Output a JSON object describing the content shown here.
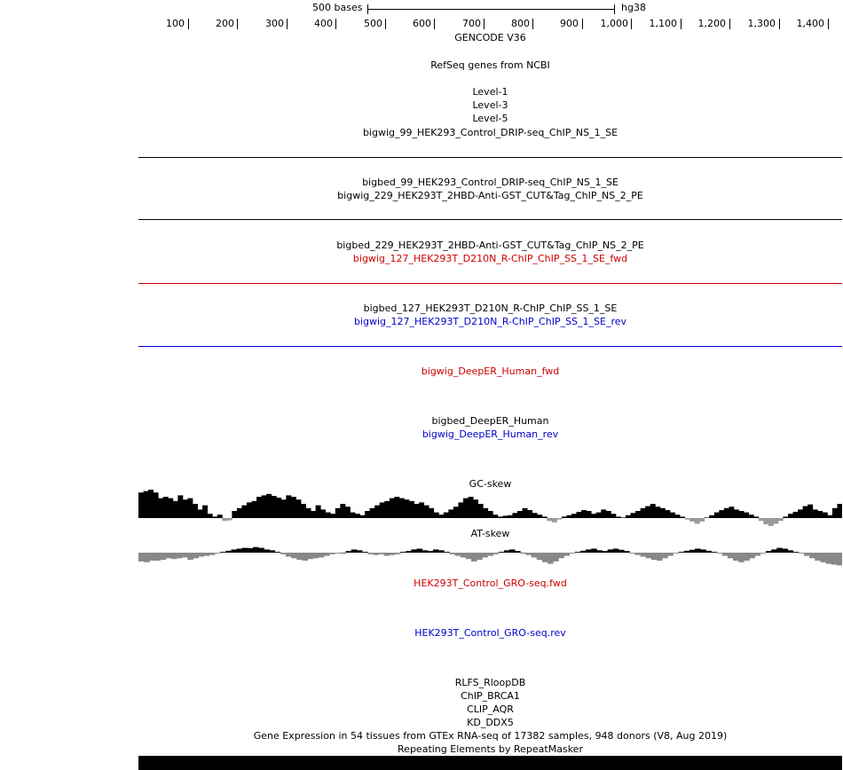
{
  "scale_bar": {
    "label": "500 bases",
    "assembly": "hg38"
  },
  "ruler": {
    "ticks": [
      "100",
      "200",
      "300",
      "400",
      "500",
      "600",
      "700",
      "800",
      "900",
      "1,000",
      "1,100",
      "1,200",
      "1,300",
      "1,400"
    ]
  },
  "tracks": {
    "gencode": "GENCODE V36",
    "refseq": "RefSeq genes from NCBI",
    "level1": "Level-1",
    "level3": "Level-3",
    "level5": "Level-5",
    "bw99": "bigwig_99_HEK293_Control_DRIP-seq_ChIP_NS_1_SE",
    "bb99": "bigbed_99_HEK293_Control_DRIP-seq_ChIP_NS_1_SE",
    "bw229": "bigwig_229_HEK293T_2HBD-Anti-GST_CUT&Tag_ChIP_NS_2_PE",
    "bb229": "bigbed_229_HEK293T_2HBD-Anti-GST_CUT&Tag_ChIP_NS_2_PE",
    "bw127fwd": "bigwig_127_HEK293T_D210N_R-ChIP_ChIP_SS_1_SE_fwd",
    "bb127": "bigbed_127_HEK293T_D210N_R-ChIP_ChIP_SS_1_SE",
    "bw127rev": "bigwig_127_HEK293T_D210N_R-ChIP_ChIP_SS_1_SE_rev",
    "deeper_fwd": "bigwig_DeepER_Human_fwd",
    "deeper_bb": "bigbed_DeepER_Human",
    "deeper_rev": "bigwig_DeepER_Human_rev",
    "gc_skew": "GC-skew",
    "at_skew": "AT-skew",
    "gro_fwd": "HEK293T_Control_GRO-seq.fwd",
    "gro_rev": "HEK293T_Control_GRO-seq.rev",
    "rlfs": "RLFS_RloopDB",
    "chip_brca1": "ChIP_BRCA1",
    "clip_aqr": "CLIP_AQR",
    "kd_ddx5": "KD_DDX5",
    "gtex": "Gene Expression in 54 tissues from GTEx RNA-seq of 17382 samples, 948 donors (V8, Aug 2019)",
    "rmsk": "Repeating Elements by RepeatMasker"
  },
  "colors": {
    "fwd": "#cc0000",
    "rev": "#0000cc",
    "gc_fill": "#000000",
    "at_pos": "#000000",
    "at_neg": "#888888"
  },
  "gc_skew_data": [
    0.9,
    0.95,
    1.0,
    0.9,
    0.7,
    0.75,
    0.7,
    0.6,
    0.8,
    0.65,
    0.7,
    0.5,
    0.3,
    0.45,
    0.15,
    0.05,
    0.12,
    -0.1,
    -0.08,
    0.25,
    0.35,
    0.45,
    0.55,
    0.6,
    0.75,
    0.8,
    0.85,
    0.78,
    0.72,
    0.65,
    0.8,
    0.75,
    0.65,
    0.5,
    0.35,
    0.25,
    0.45,
    0.3,
    0.2,
    0.15,
    0.35,
    0.5,
    0.4,
    0.2,
    0.15,
    0.1,
    0.25,
    0.35,
    0.45,
    0.55,
    0.6,
    0.7,
    0.75,
    0.7,
    0.65,
    0.6,
    0.5,
    0.55,
    0.45,
    0.35,
    0.2,
    0.12,
    0.2,
    0.3,
    0.4,
    0.55,
    0.7,
    0.75,
    0.65,
    0.5,
    0.35,
    0.25,
    0.12,
    0.05,
    0.08,
    0.1,
    0.18,
    0.25,
    0.35,
    0.28,
    0.18,
    0.12,
    0.05,
    -0.1,
    -0.15,
    -0.05,
    0.05,
    0.1,
    0.15,
    0.22,
    0.28,
    0.25,
    0.15,
    0.2,
    0.3,
    0.25,
    0.15,
    0.05,
    0.02,
    0.1,
    0.18,
    0.25,
    0.35,
    0.42,
    0.5,
    0.4,
    0.35,
    0.28,
    0.2,
    0.12,
    0.05,
    -0.05,
    -0.12,
    -0.2,
    -0.12,
    0.02,
    0.1,
    0.2,
    0.28,
    0.35,
    0.4,
    0.3,
    0.25,
    0.2,
    0.12,
    0.05,
    -0.1,
    -0.22,
    -0.28,
    -0.2,
    -0.1,
    0.05,
    0.15,
    0.22,
    0.3,
    0.42,
    0.48,
    0.3,
    0.25,
    0.2,
    0.1,
    0.35,
    0.5
  ],
  "at_skew_data": [
    -0.55,
    -0.6,
    -0.5,
    -0.5,
    -0.45,
    -0.35,
    -0.4,
    -0.35,
    -0.3,
    -0.45,
    -0.35,
    -0.25,
    -0.2,
    -0.15,
    -0.05,
    0.05,
    0.12,
    0.2,
    0.25,
    0.3,
    0.28,
    0.35,
    0.3,
    0.2,
    0.15,
    0.05,
    -0.1,
    -0.25,
    -0.35,
    -0.45,
    -0.5,
    -0.4,
    -0.35,
    -0.3,
    -0.2,
    -0.1,
    -0.05,
    0.0,
    0.1,
    0.2,
    0.15,
    0.05,
    -0.1,
    -0.15,
    -0.1,
    -0.2,
    -0.15,
    -0.1,
    0.05,
    0.1,
    0.2,
    0.25,
    0.15,
    0.1,
    0.2,
    0.15,
    0.05,
    -0.1,
    -0.2,
    -0.3,
    -0.4,
    -0.55,
    -0.45,
    -0.3,
    -0.2,
    -0.1,
    0.05,
    0.15,
    0.2,
    0.1,
    0.0,
    -0.15,
    -0.3,
    -0.45,
    -0.6,
    -0.7,
    -0.55,
    -0.35,
    -0.2,
    -0.05,
    0.05,
    0.12,
    0.2,
    0.25,
    0.15,
    0.1,
    0.2,
    0.25,
    0.18,
    0.1,
    -0.05,
    -0.15,
    -0.25,
    -0.35,
    -0.45,
    -0.5,
    -0.35,
    -0.2,
    -0.05,
    0.05,
    0.12,
    0.18,
    0.25,
    0.2,
    0.12,
    0.05,
    -0.05,
    -0.2,
    -0.35,
    -0.5,
    -0.6,
    -0.5,
    -0.35,
    -0.2,
    -0.05,
    0.1,
    0.2,
    0.3,
    0.25,
    0.15,
    0.05,
    -0.05,
    -0.2,
    -0.35,
    -0.5,
    -0.6,
    -0.7,
    -0.75,
    -0.8
  ]
}
